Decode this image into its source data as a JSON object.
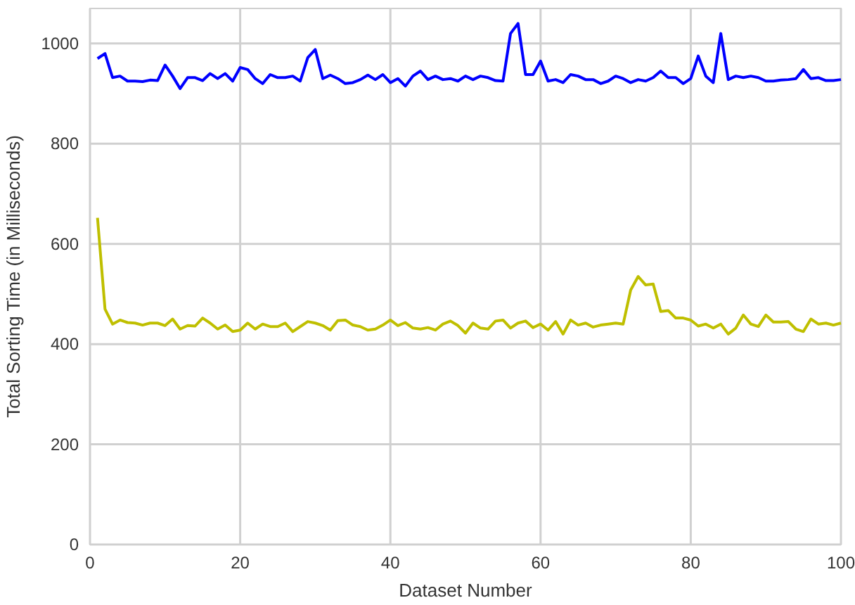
{
  "chart_data": {
    "type": "line",
    "xlabel": "Dataset Number",
    "ylabel": "Total Sorting Time (in Milliseconds)",
    "x": [
      1,
      2,
      3,
      4,
      5,
      6,
      7,
      8,
      9,
      10,
      11,
      12,
      13,
      14,
      15,
      16,
      17,
      18,
      19,
      20,
      21,
      22,
      23,
      24,
      25,
      26,
      27,
      28,
      29,
      30,
      31,
      32,
      33,
      34,
      35,
      36,
      37,
      38,
      39,
      40,
      41,
      42,
      43,
      44,
      45,
      46,
      47,
      48,
      49,
      50,
      51,
      52,
      53,
      54,
      55,
      56,
      57,
      58,
      59,
      60,
      61,
      62,
      63,
      64,
      65,
      66,
      67,
      68,
      69,
      70,
      71,
      72,
      73,
      74,
      75,
      76,
      77,
      78,
      79,
      80,
      81,
      82,
      83,
      84,
      85,
      86,
      87,
      88,
      89,
      90,
      91,
      92,
      93,
      94,
      95,
      96,
      97,
      98,
      99,
      100
    ],
    "series": [
      {
        "color": "#0000ff",
        "values": [
          970,
          980,
          932,
          935,
          925,
          925,
          924,
          927,
          926,
          957,
          935,
          910,
          932,
          932,
          926,
          940,
          930,
          940,
          925,
          952,
          948,
          930,
          920,
          938,
          932,
          932,
          935,
          925,
          972,
          988,
          930,
          937,
          930,
          920,
          922,
          928,
          937,
          928,
          938,
          922,
          930,
          915,
          935,
          945,
          928,
          935,
          928,
          930,
          925,
          935,
          928,
          935,
          932,
          926,
          925,
          1020,
          1040,
          938,
          938,
          965,
          925,
          928,
          922,
          938,
          935,
          928,
          928,
          920,
          925,
          935,
          930,
          922,
          928,
          925,
          932,
          945,
          932,
          932,
          920,
          930,
          975,
          935,
          922,
          1020,
          928,
          935,
          932,
          935,
          932,
          925,
          925,
          927,
          928,
          930,
          948,
          930,
          932,
          926,
          926,
          928
        ]
      },
      {
        "color": "#bfbf00",
        "values": [
          652,
          470,
          440,
          448,
          443,
          442,
          438,
          442,
          442,
          437,
          450,
          430,
          437,
          436,
          452,
          442,
          430,
          438,
          425,
          428,
          442,
          430,
          440,
          435,
          435,
          442,
          425,
          435,
          445,
          442,
          437,
          428,
          447,
          448,
          438,
          435,
          428,
          430,
          438,
          448,
          437,
          443,
          432,
          430,
          433,
          428,
          440,
          446,
          437,
          422,
          442,
          432,
          430,
          446,
          448,
          432,
          442,
          446,
          433,
          440,
          428,
          445,
          420,
          448,
          438,
          442,
          434,
          438,
          440,
          442,
          440,
          508,
          535,
          518,
          520,
          465,
          467,
          452,
          452,
          448,
          436,
          440,
          432,
          440,
          420,
          432,
          458,
          440,
          435,
          458,
          444,
          444,
          445,
          430,
          425,
          450,
          440,
          442,
          438,
          442
        ]
      }
    ],
    "xlim": [
      0,
      100
    ],
    "xticks": [
      0,
      20,
      40,
      60,
      80,
      100
    ],
    "ylim": [
      0,
      1070
    ],
    "yticks": [
      0,
      200,
      400,
      600,
      800,
      1000
    ],
    "grid": true,
    "marker": "none",
    "line_style": "solid"
  }
}
